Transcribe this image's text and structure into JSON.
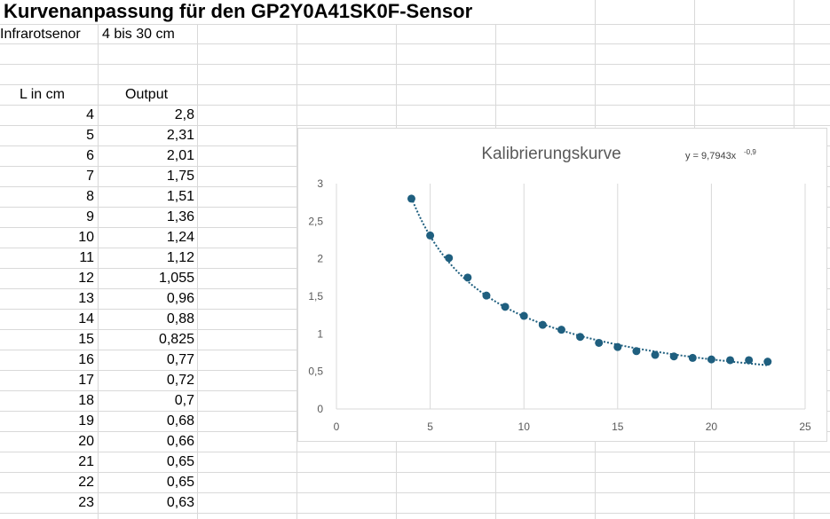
{
  "sheet": {
    "title": "Kurvenanpassung für den GP2Y0A41SK0F-Sensor",
    "subtitle_label": "Infrarotsenor",
    "subtitle_value": "4 bis 30 cm",
    "col_header_l": "L in cm",
    "col_header_output": "Output",
    "rows": [
      {
        "l": "4",
        "out": "2,8"
      },
      {
        "l": "5",
        "out": "2,31"
      },
      {
        "l": "6",
        "out": "2,01"
      },
      {
        "l": "7",
        "out": "1,75"
      },
      {
        "l": "8",
        "out": "1,51"
      },
      {
        "l": "9",
        "out": "1,36"
      },
      {
        "l": "10",
        "out": "1,24"
      },
      {
        "l": "11",
        "out": "1,12"
      },
      {
        "l": "12",
        "out": "1,055"
      },
      {
        "l": "13",
        "out": "0,96"
      },
      {
        "l": "14",
        "out": "0,88"
      },
      {
        "l": "15",
        "out": "0,825"
      },
      {
        "l": "16",
        "out": "0,77"
      },
      {
        "l": "17",
        "out": "0,72"
      },
      {
        "l": "18",
        "out": "0,7"
      },
      {
        "l": "19",
        "out": "0,68"
      },
      {
        "l": "20",
        "out": "0,66"
      },
      {
        "l": "21",
        "out": "0,65"
      },
      {
        "l": "22",
        "out": "0,65"
      },
      {
        "l": "23",
        "out": "0,63"
      }
    ]
  },
  "chart_data": {
    "type": "scatter",
    "title": "Kalibrierungskurve",
    "trendline_equation": "y = 9,7943x",
    "trendline_exponent": "-0,9",
    "xlabel": "",
    "ylabel": "",
    "xlim": [
      0,
      25
    ],
    "ylim": [
      0,
      3
    ],
    "x_ticks": [
      0,
      5,
      10,
      15,
      20,
      25
    ],
    "y_ticks": [
      0,
      0.5,
      1,
      1.5,
      2,
      2.5,
      3
    ],
    "y_tick_labels": [
      "0",
      "0,5",
      "1",
      "1,5",
      "2",
      "2,5",
      "3"
    ],
    "x_tick_labels": [
      "0",
      "5",
      "10",
      "15",
      "20",
      "25"
    ],
    "grid": "vertical",
    "legend": "none",
    "marker_color": "#1f5f7f",
    "trendline_color": "#1f5f7f",
    "trendline": {
      "type": "power",
      "a": 9.7943,
      "b": -0.9
    },
    "series": [
      {
        "x": [
          4,
          5,
          6,
          7,
          8,
          9,
          10,
          11,
          12,
          13,
          14,
          15,
          16,
          17,
          18,
          19,
          20,
          21,
          22,
          23
        ],
        "y": [
          2.8,
          2.31,
          2.01,
          1.75,
          1.51,
          1.36,
          1.24,
          1.12,
          1.055,
          0.96,
          0.88,
          0.825,
          0.77,
          0.72,
          0.7,
          0.68,
          0.66,
          0.65,
          0.65,
          0.63
        ]
      }
    ]
  }
}
